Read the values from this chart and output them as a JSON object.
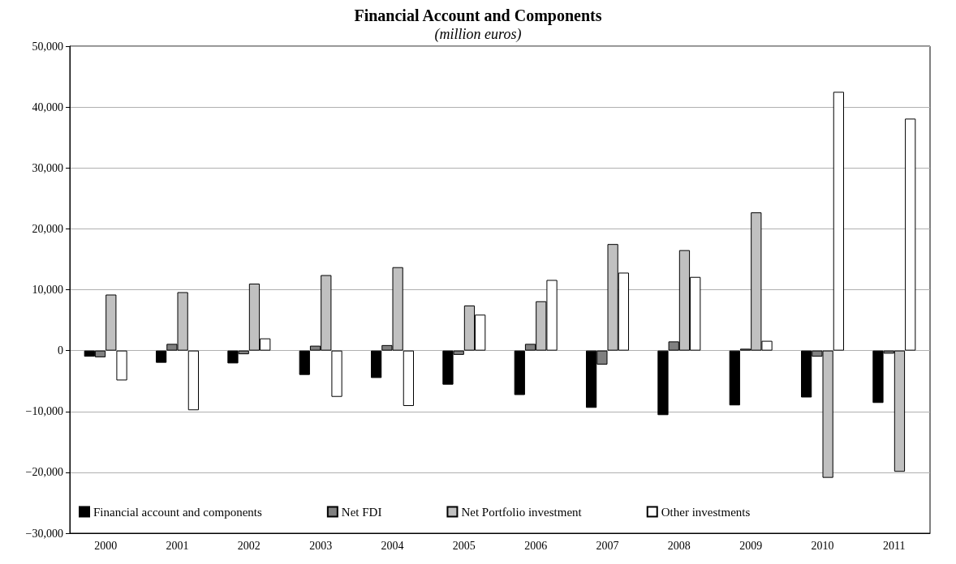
{
  "chart_data": {
    "type": "bar",
    "title": "Financial Account and Components",
    "subtitle": "(million euros)",
    "categories": [
      "2000",
      "2001",
      "2002",
      "2003",
      "2004",
      "2005",
      "2006",
      "2007",
      "2008",
      "2009",
      "2010",
      "2011"
    ],
    "series": [
      {
        "name": "Financial account and components",
        "color": "#000000",
        "values": [
          -1000,
          -2000,
          -2100,
          -4000,
          -4500,
          -5600,
          -7300,
          -9400,
          -10600,
          -9000,
          -7700,
          -8600
        ]
      },
      {
        "name": "Net FDI",
        "color": "#808080",
        "values": [
          -1100,
          1100,
          -600,
          800,
          900,
          -700,
          1100,
          -2300,
          1500,
          300,
          -1000,
          -500
        ]
      },
      {
        "name": "Net Portfolio investment",
        "color": "#c0c0c0",
        "values": [
          9200,
          9600,
          11000,
          12400,
          13700,
          7400,
          8100,
          17500,
          16500,
          22700,
          -20900,
          -19900
        ]
      },
      {
        "name": "Other investments",
        "color": "#ffffff",
        "values": [
          -4900,
          -9800,
          2000,
          -7600,
          -9100,
          5900,
          11600,
          12800,
          12100,
          1600,
          42500,
          38100
        ]
      }
    ],
    "ylim": [
      -30000,
      50000
    ],
    "yticks": [
      {
        "value": -30000,
        "label": "−30,000"
      },
      {
        "value": -20000,
        "label": "−20,000"
      },
      {
        "value": -10000,
        "label": "−10,000"
      },
      0,
      {
        "value": 10000,
        "label": "10,000"
      },
      {
        "value": 20000,
        "label": "20,000"
      },
      {
        "value": 30000,
        "label": "30,000"
      },
      {
        "value": 40000,
        "label": "40,000"
      },
      {
        "value": 50000,
        "label": "50,000"
      }
    ],
    "grid": "y",
    "legend": "bottom"
  }
}
